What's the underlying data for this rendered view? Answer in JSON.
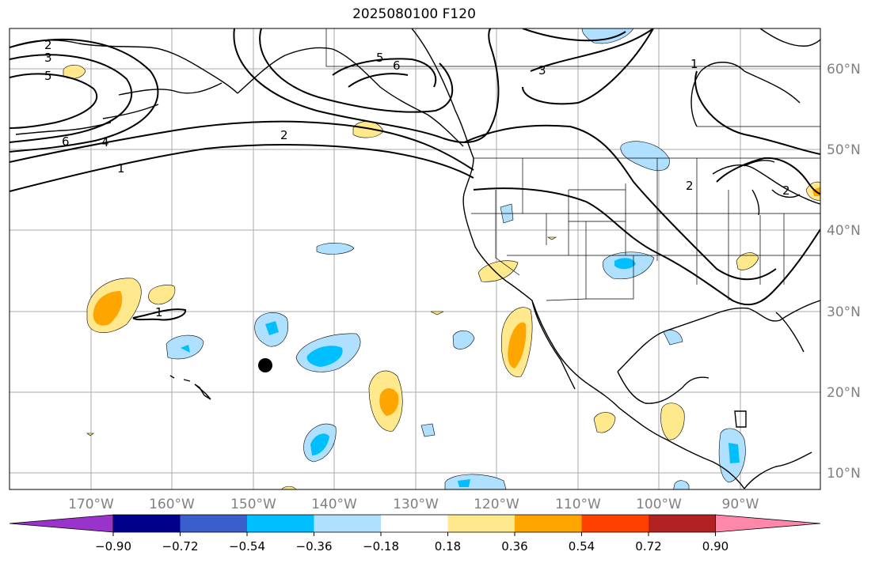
{
  "title": "2025080100 F120",
  "map": {
    "lon_labels": [
      "170°W",
      "160°W",
      "150°W",
      "140°W",
      "130°W",
      "120°W",
      "110°W",
      "100°W",
      "90°W"
    ],
    "lat_labels": [
      "60°N",
      "50°N",
      "40°N",
      "30°N",
      "20°N",
      "10°N"
    ],
    "contour_labels": [
      "2",
      "3",
      "5",
      "6",
      "4",
      "1",
      "2",
      "5",
      "6",
      "3",
      "1",
      "2",
      "1",
      "2"
    ],
    "marker": "station-marker"
  },
  "colorbar": {
    "ticks": [
      "−0.90",
      "−0.72",
      "−0.54",
      "−0.36",
      "−0.18",
      "0.18",
      "0.36",
      "0.54",
      "0.72",
      "0.90"
    ],
    "colors": [
      "#9933cc",
      "#00008b",
      "#3a5fcd",
      "#00bfff",
      "#afe0ff",
      "#ffffff",
      "#ffe98c",
      "#ffa500",
      "#ff4000",
      "#b22222",
      "#ff88aa"
    ]
  },
  "palette": {
    "light_blue": "#afe0ff",
    "blue": "#00bfff",
    "light_yellow": "#ffe98c",
    "orange": "#ffa500",
    "grid": "#aaaaaa",
    "label_gray": "#808080"
  }
}
